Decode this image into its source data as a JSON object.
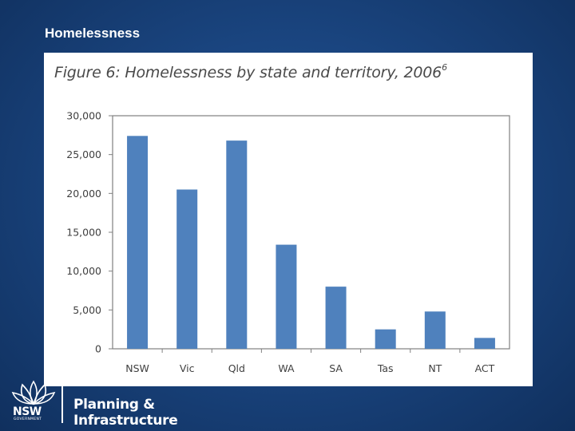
{
  "slide": {
    "title": "Homelessness"
  },
  "figure": {
    "caption": "Figure 6: Homelessness by state and territory, 2006",
    "caption_superscript": "6"
  },
  "chart_data": {
    "type": "bar",
    "categories": [
      "NSW",
      "Vic",
      "Qld",
      "WA",
      "SA",
      "Tas",
      "NT",
      "ACT"
    ],
    "values": [
      27400,
      20500,
      26800,
      13400,
      8000,
      2500,
      4800,
      1400
    ],
    "ylim": [
      0,
      30000
    ],
    "yticks": [
      0,
      5000,
      10000,
      15000,
      20000,
      25000,
      30000
    ],
    "ytick_labels": [
      "0",
      "5,000",
      "10,000",
      "15,000",
      "20,000",
      "25,000",
      "30,000"
    ],
    "grid": false,
    "legend": "none",
    "bar_color": "#4f81bd"
  },
  "logo": {
    "org_line1": "Planning &",
    "org_line2": "Infrastructure",
    "nsw": "NSW",
    "government": "GOVERNMENT"
  }
}
